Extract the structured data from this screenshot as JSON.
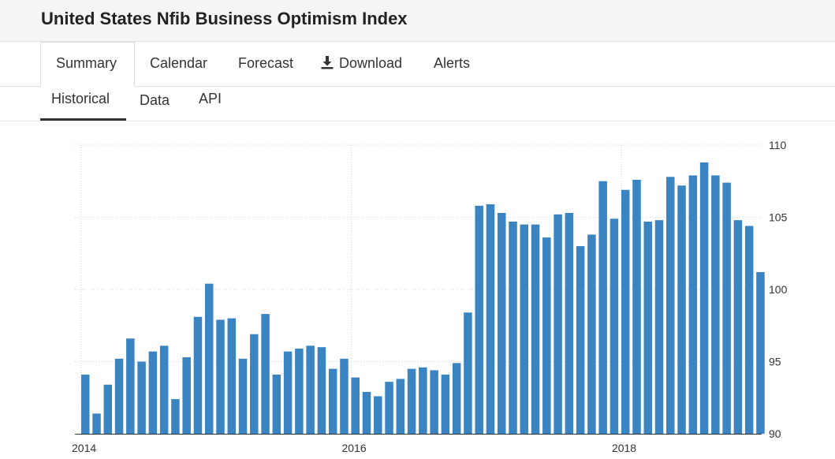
{
  "page": {
    "title": "United States Nfib Business Optimism Index"
  },
  "nav": {
    "tabs": [
      {
        "label": "Summary",
        "active": true
      },
      {
        "label": "Calendar"
      },
      {
        "label": "Forecast"
      },
      {
        "label": "Download",
        "icon": "download-icon"
      },
      {
        "label": "Alerts"
      }
    ]
  },
  "subnav": {
    "tabs": [
      {
        "label": "Historical",
        "active": true
      },
      {
        "label": "Data"
      },
      {
        "label": "API"
      }
    ]
  },
  "colors": {
    "bar": "#3a84c1",
    "grid": "#d9d9d9",
    "axis": "#333333"
  },
  "chart_data": {
    "type": "bar",
    "title": "",
    "xlabel": "",
    "ylabel": "",
    "ylim": [
      90,
      110
    ],
    "yticks": [
      110,
      105,
      100,
      95,
      90
    ],
    "xticks": [
      "2014",
      "2016",
      "2018"
    ],
    "grid": true,
    "categories": [
      "2014-01",
      "2014-02",
      "2014-03",
      "2014-04",
      "2014-05",
      "2014-06",
      "2014-07",
      "2014-08",
      "2014-09",
      "2014-10",
      "2014-11",
      "2014-12",
      "2015-01",
      "2015-02",
      "2015-03",
      "2015-04",
      "2015-05",
      "2015-06",
      "2015-07",
      "2015-08",
      "2015-09",
      "2015-10",
      "2015-11",
      "2015-12",
      "2016-01",
      "2016-02",
      "2016-03",
      "2016-04",
      "2016-05",
      "2016-06",
      "2016-07",
      "2016-08",
      "2016-09",
      "2016-10",
      "2016-11",
      "2016-12",
      "2017-01",
      "2017-02",
      "2017-03",
      "2017-04",
      "2017-05",
      "2017-06",
      "2017-07",
      "2017-08",
      "2017-09",
      "2017-10",
      "2017-11",
      "2017-12",
      "2018-01",
      "2018-02",
      "2018-03",
      "2018-04",
      "2018-05",
      "2018-06",
      "2018-07",
      "2018-08",
      "2018-09",
      "2018-10",
      "2018-11",
      "2018-12",
      "2019-01"
    ],
    "values": [
      94.1,
      91.4,
      93.4,
      95.2,
      96.6,
      95.0,
      95.7,
      96.1,
      92.4,
      95.3,
      98.1,
      100.4,
      97.9,
      98.0,
      95.2,
      96.9,
      98.3,
      94.1,
      95.7,
      95.9,
      96.1,
      96.0,
      94.5,
      95.2,
      93.9,
      92.9,
      92.6,
      93.6,
      93.8,
      94.5,
      94.6,
      94.4,
      94.1,
      94.9,
      98.4,
      105.8,
      105.9,
      105.3,
      104.7,
      104.5,
      104.5,
      103.6,
      105.2,
      105.3,
      103.0,
      103.8,
      107.5,
      104.9,
      106.9,
      107.6,
      104.7,
      104.8,
      107.8,
      107.2,
      107.9,
      108.8,
      107.9,
      107.4,
      104.8,
      104.4,
      101.2
    ]
  }
}
